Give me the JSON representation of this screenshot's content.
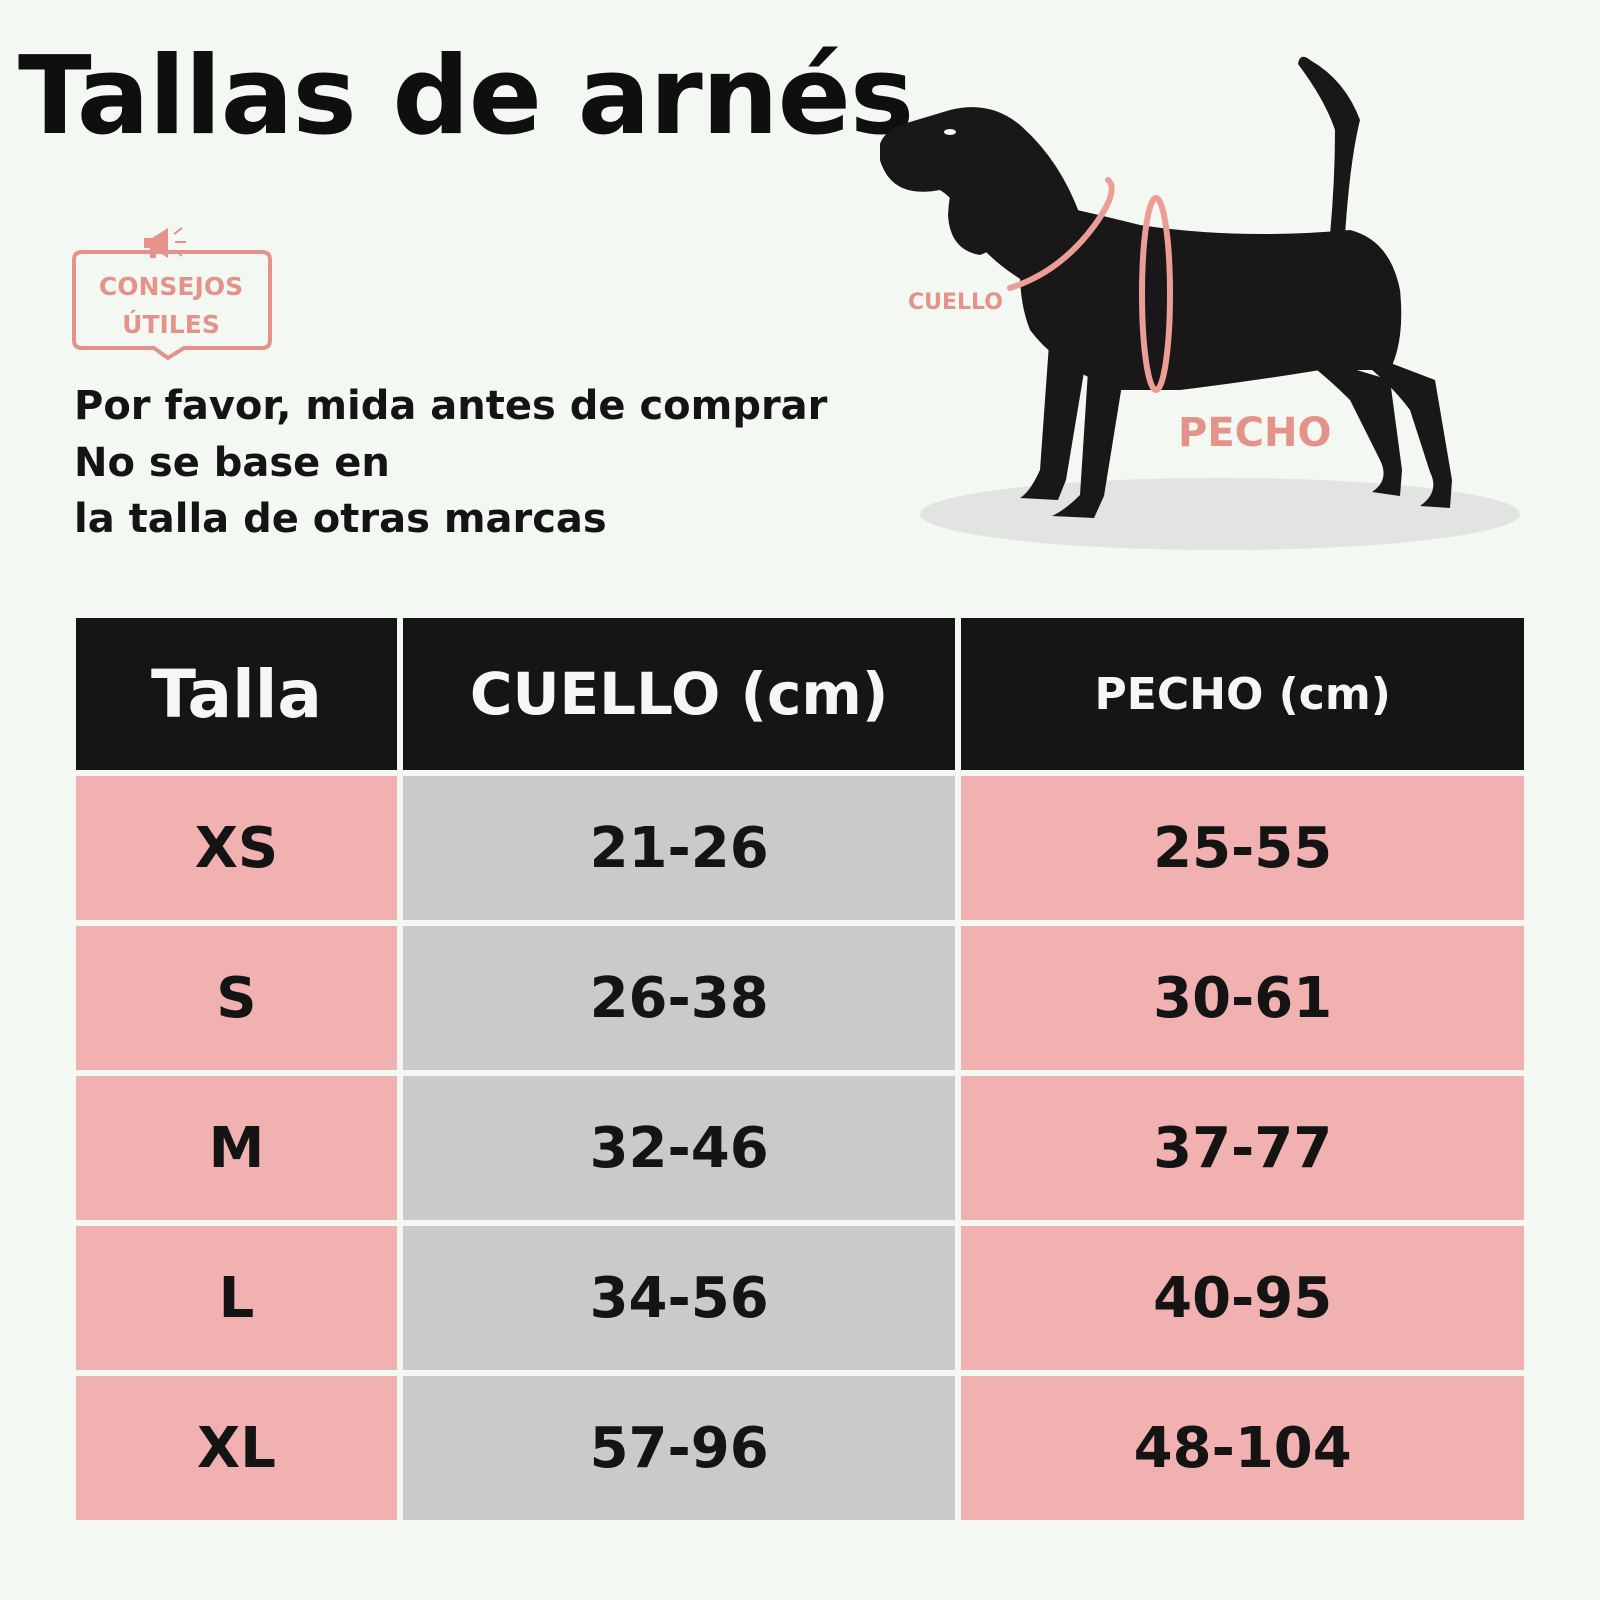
{
  "title": "Tallas de arnés",
  "tip": {
    "icon": "megaphone-icon",
    "line1": "CONSEJOS",
    "line2": "ÚTILES"
  },
  "message": {
    "line1": "Por favor, mida antes de comprar",
    "line2": "No se base en",
    "line3": "la talla de otras marcas"
  },
  "illustration": {
    "neck_label": "CUELLO",
    "chest_label": "PECHO"
  },
  "colors": {
    "accent": "#e5938a",
    "header_bg": "#151515",
    "pink_cell": "#f1b1b1",
    "gray_cell": "#c9cac9"
  },
  "table": {
    "headers": [
      "Talla",
      "CUELLO (cm)",
      "PECHO (cm)"
    ],
    "rows": [
      {
        "size": "XS",
        "neck": "21-26",
        "chest": "25-55"
      },
      {
        "size": "S",
        "neck": "26-38",
        "chest": "30-61"
      },
      {
        "size": "M",
        "neck": "32-46",
        "chest": "37-77"
      },
      {
        "size": "L",
        "neck": "34-56",
        "chest": "40-95"
      },
      {
        "size": "XL",
        "neck": "57-96",
        "chest": "48-104"
      }
    ]
  }
}
